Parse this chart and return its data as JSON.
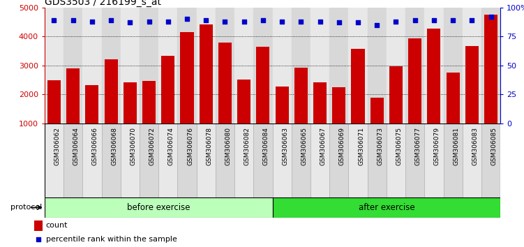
{
  "title": "GDS3503 / 216199_s_at",
  "categories": [
    "GSM306062",
    "GSM306064",
    "GSM306066",
    "GSM306068",
    "GSM306070",
    "GSM306072",
    "GSM306074",
    "GSM306076",
    "GSM306078",
    "GSM306080",
    "GSM306082",
    "GSM306084",
    "GSM306063",
    "GSM306065",
    "GSM306067",
    "GSM306069",
    "GSM306071",
    "GSM306073",
    "GSM306075",
    "GSM306077",
    "GSM306079",
    "GSM306081",
    "GSM306083",
    "GSM306085"
  ],
  "counts": [
    2480,
    2900,
    2330,
    3200,
    2430,
    2470,
    3320,
    4160,
    4420,
    3800,
    2520,
    3640,
    2280,
    2920,
    2430,
    2240,
    3580,
    1880,
    2980,
    3930,
    4260,
    2760,
    3680,
    4760
  ],
  "percentiles": [
    89,
    89,
    88,
    89,
    87,
    88,
    88,
    90,
    89,
    88,
    88,
    89,
    88,
    88,
    88,
    87,
    87,
    85,
    88,
    89,
    89,
    89,
    89,
    92
  ],
  "before_count": 12,
  "after_count": 12,
  "bar_color": "#cc0000",
  "dot_color": "#0000cc",
  "ylim_left": [
    1000,
    5000
  ],
  "ylim_right": [
    0,
    100
  ],
  "yticks_left": [
    1000,
    2000,
    3000,
    4000,
    5000
  ],
  "yticks_right": [
    0,
    25,
    50,
    75,
    100
  ],
  "ytick_labels_right": [
    "0",
    "25",
    "50",
    "75",
    "100%"
  ],
  "grid_values": [
    2000,
    3000,
    4000
  ],
  "before_label": "before exercise",
  "after_label": "after exercise",
  "protocol_label": "protocol",
  "legend_count": "count",
  "legend_percentile": "percentile rank within the sample",
  "before_color": "#bbffbb",
  "after_color": "#33dd33",
  "cell_color_odd": "#d8d8d8",
  "cell_color_even": "#e8e8e8",
  "bg_color": "#ffffff"
}
